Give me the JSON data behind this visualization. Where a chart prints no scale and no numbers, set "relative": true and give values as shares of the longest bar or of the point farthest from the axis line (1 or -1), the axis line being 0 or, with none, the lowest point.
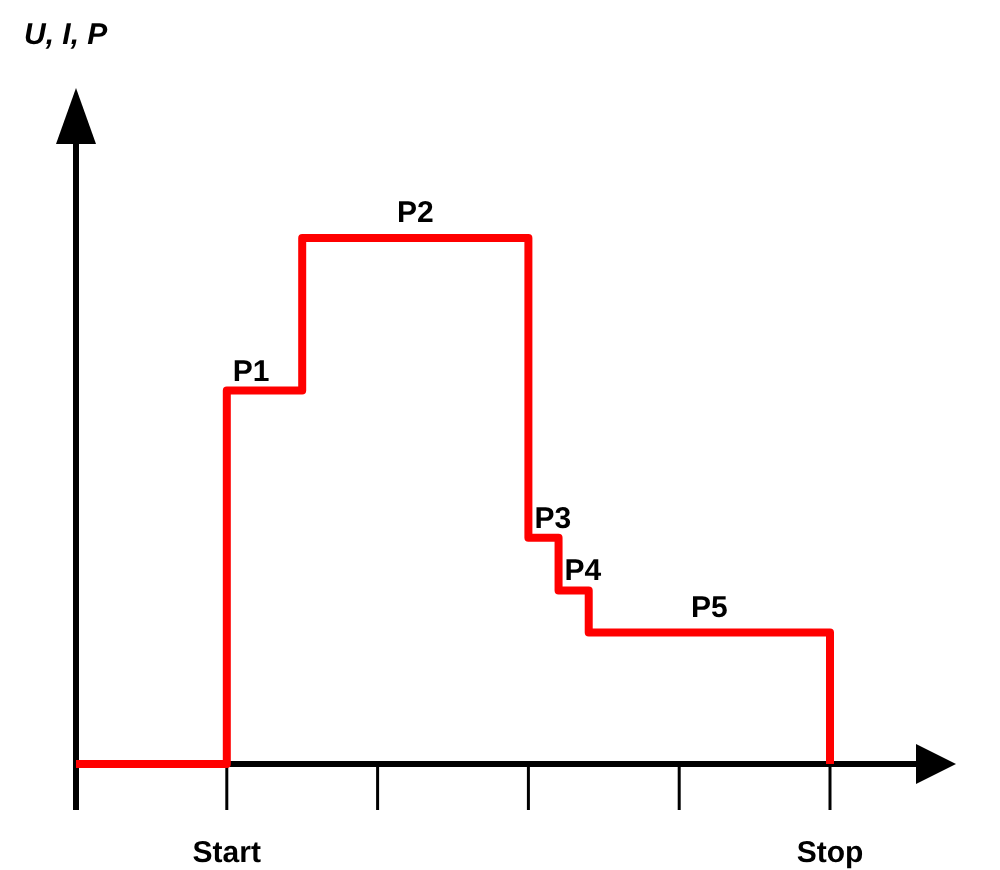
{
  "chart_data": {
    "type": "step",
    "relative": true,
    "categories": [
      null,
      null,
      null,
      null,
      null,
      null,
      null,
      null,
      null,
      null,
      "Start",
      null,
      null,
      null,
      null,
      null,
      null,
      null,
      null,
      null,
      null,
      null,
      null,
      null,
      null,
      null,
      null,
      null,
      null,
      null,
      null,
      null,
      null,
      null,
      null,
      null,
      null,
      null,
      null,
      null,
      null,
      null,
      null,
      null,
      null,
      null,
      null,
      null,
      null,
      null,
      "Stop"
    ],
    "series": [
      {
        "color": "#ff0000",
        "values": [
          0,
          0,
          0,
          0,
          0,
          0,
          0,
          0,
          0,
          0,
          0.71,
          0.71,
          0.71,
          0.71,
          0.71,
          1,
          1,
          1,
          1,
          1,
          1,
          1,
          1,
          1,
          1,
          1,
          1,
          1,
          1,
          1,
          0.43,
          0.43,
          0.33,
          0.33,
          0.25,
          0.25,
          0.25,
          0.25,
          0.25,
          0.25,
          0.25,
          0.25,
          0.25,
          0.25,
          0.25,
          0.25,
          0.25,
          0.25,
          0.25,
          0.25,
          0
        ]
      }
    ],
    "annotations": [
      "U, I, P",
      {
        "text": "P1",
        "y": 0.71
      },
      {
        "text": "P2",
        "y": 1
      },
      {
        "text": "P3",
        "y": 0.43
      },
      {
        "text": "P4",
        "y": 0.33
      },
      {
        "text": "P5",
        "y": 0.25
      }
    ]
  }
}
